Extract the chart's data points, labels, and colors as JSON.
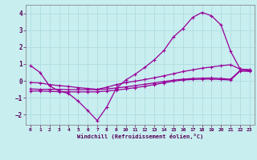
{
  "xlabel": "Windchill (Refroidissement éolien,°C)",
  "bg_color": "#c8eef0",
  "line_color": "#990099",
  "grid_color": "#b0dde0",
  "ylim": [
    -2.6,
    4.5
  ],
  "xlim": [
    -0.5,
    23.5
  ],
  "yticks": [
    -2,
    -1,
    0,
    1,
    2,
    3,
    4
  ],
  "xticks": [
    0,
    1,
    2,
    3,
    4,
    5,
    6,
    7,
    8,
    9,
    10,
    11,
    12,
    13,
    14,
    15,
    16,
    17,
    18,
    19,
    20,
    21,
    22,
    23
  ],
  "line1_x": [
    0,
    1,
    2,
    3,
    4,
    5,
    6,
    7,
    8,
    9,
    10,
    11,
    12,
    13,
    14,
    15,
    16,
    17,
    18,
    19,
    20,
    21,
    22,
    23
  ],
  "line1_y": [
    0.9,
    0.5,
    -0.3,
    -0.6,
    -0.75,
    -1.2,
    -1.75,
    -2.35,
    -1.55,
    -0.45,
    0.05,
    0.4,
    0.8,
    1.25,
    1.8,
    2.6,
    3.1,
    3.75,
    4.05,
    3.85,
    3.3,
    1.75,
    0.7,
    0.65
  ],
  "line2_x": [
    0,
    1,
    2,
    3,
    4,
    5,
    6,
    7,
    8,
    9,
    10,
    11,
    12,
    13,
    14,
    15,
    16,
    17,
    18,
    19,
    20,
    21,
    22,
    23
  ],
  "line2_y": [
    -0.1,
    -0.12,
    -0.22,
    -0.28,
    -0.33,
    -0.4,
    -0.45,
    -0.5,
    -0.38,
    -0.22,
    -0.1,
    -0.02,
    0.08,
    0.18,
    0.3,
    0.42,
    0.55,
    0.65,
    0.75,
    0.82,
    0.9,
    0.95,
    0.7,
    0.65
  ],
  "line3_x": [
    0,
    1,
    2,
    3,
    4,
    5,
    6,
    7,
    8,
    9,
    10,
    11,
    12,
    13,
    14,
    15,
    16,
    17,
    18,
    19,
    20,
    21,
    22,
    23
  ],
  "line3_y": [
    -0.48,
    -0.5,
    -0.5,
    -0.5,
    -0.52,
    -0.52,
    -0.52,
    -0.52,
    -0.48,
    -0.42,
    -0.36,
    -0.28,
    -0.2,
    -0.12,
    -0.04,
    0.04,
    0.1,
    0.14,
    0.16,
    0.17,
    0.14,
    0.1,
    0.62,
    0.6
  ],
  "line4_x": [
    0,
    1,
    2,
    3,
    4,
    5,
    6,
    7,
    8,
    9,
    10,
    11,
    12,
    13,
    14,
    15,
    16,
    17,
    18,
    19,
    20,
    21,
    22,
    23
  ],
  "line4_y": [
    -0.6,
    -0.6,
    -0.62,
    -0.64,
    -0.65,
    -0.65,
    -0.65,
    -0.65,
    -0.6,
    -0.55,
    -0.48,
    -0.4,
    -0.32,
    -0.22,
    -0.12,
    -0.02,
    0.05,
    0.08,
    0.1,
    0.1,
    0.08,
    0.05,
    0.58,
    0.56
  ]
}
